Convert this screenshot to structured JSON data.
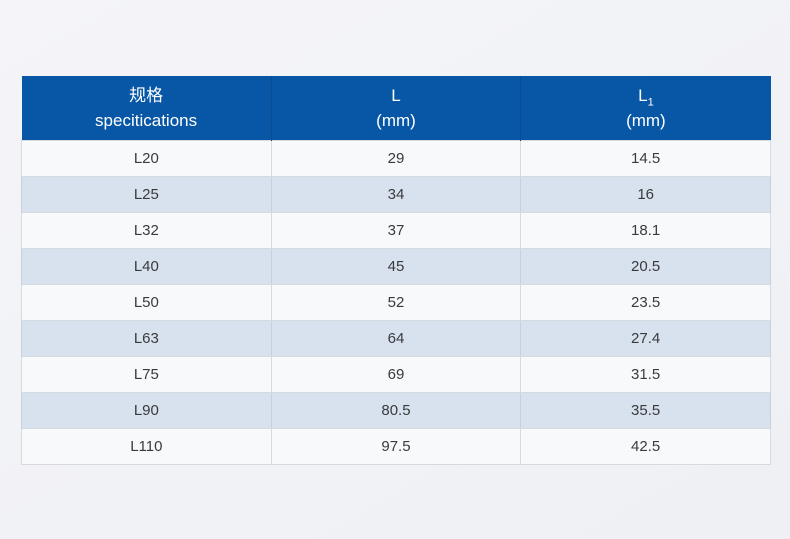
{
  "colors": {
    "header_bg": "#0857a6",
    "header_divider": "#0a4a8f",
    "header_text": "#ffffff",
    "row_odd_bg": "#f8f9fb",
    "row_even_bg": "#d7e2ee",
    "body_text": "#3a3a3c",
    "grid_border": "#d5d9e0",
    "page_bg_start": "#f5f5f9",
    "page_bg_end": "#eef0f4"
  },
  "table": {
    "headers": [
      {
        "line1": "规格",
        "sub": "",
        "line2": "specitications"
      },
      {
        "line1": "L",
        "sub": "",
        "line2": "(mm)"
      },
      {
        "line1": "L",
        "sub": "1",
        "line2": "(mm)"
      }
    ],
    "rows": [
      [
        "L20",
        "29",
        "14.5"
      ],
      [
        "L25",
        "34",
        "16"
      ],
      [
        "L32",
        "37",
        "18.1"
      ],
      [
        "L40",
        "45",
        "20.5"
      ],
      [
        "L50",
        "52",
        "23.5"
      ],
      [
        "L63",
        "64",
        "27.4"
      ],
      [
        "L75",
        "69",
        "31.5"
      ],
      [
        "L90",
        "80.5",
        "35.5"
      ],
      [
        "L110",
        "97.5",
        "42.5"
      ]
    ]
  },
  "chart_data": {
    "type": "table",
    "title": "",
    "columns": [
      "规格 specitications",
      "L (mm)",
      "L1 (mm)"
    ],
    "rows": [
      {
        "specification": "L20",
        "L_mm": 29,
        "L1_mm": 14.5
      },
      {
        "specification": "L25",
        "L_mm": 34,
        "L1_mm": 16
      },
      {
        "specification": "L32",
        "L_mm": 37,
        "L1_mm": 18.1
      },
      {
        "specification": "L40",
        "L_mm": 45,
        "L1_mm": 20.5
      },
      {
        "specification": "L50",
        "L_mm": 52,
        "L1_mm": 23.5
      },
      {
        "specification": "L63",
        "L_mm": 64,
        "L1_mm": 27.4
      },
      {
        "specification": "L75",
        "L_mm": 69,
        "L1_mm": 31.5
      },
      {
        "specification": "L90",
        "L_mm": 80.5,
        "L1_mm": 35.5
      },
      {
        "specification": "L110",
        "L_mm": 97.5,
        "L1_mm": 42.5
      }
    ],
    "layout": {
      "header_background": "#0857a6",
      "alternating_rows": true,
      "columns_equal_width": true
    }
  }
}
